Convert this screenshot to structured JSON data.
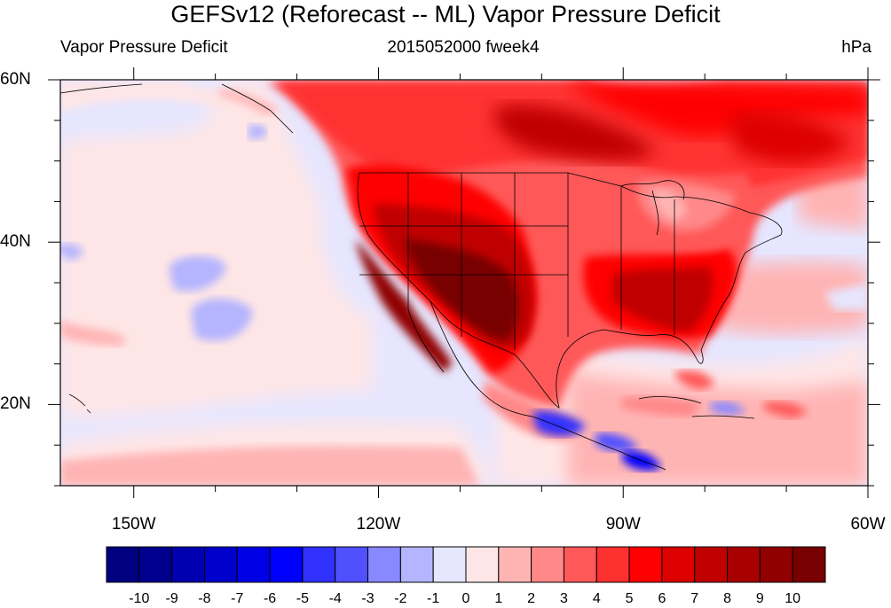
{
  "title": "GEFSv12 (Reforecast -- ML) Vapor Pressure Deficit",
  "subtitle_left": "Vapor Pressure Deficit",
  "subtitle_center": "2015052000 fweek4",
  "subtitle_right": "hPa",
  "lat_labels": [
    {
      "text": "60N",
      "lat": 60
    },
    {
      "text": "40N",
      "lat": 40
    },
    {
      "text": "20N",
      "lat": 20
    }
  ],
  "lon_labels": [
    {
      "text": "150W",
      "lon": -150
    },
    {
      "text": "120W",
      "lon": -120
    },
    {
      "text": "90W",
      "lon": -90
    },
    {
      "text": "60W",
      "lon": -60
    }
  ],
  "map_extent": {
    "lon_min": -159,
    "lon_max": -60,
    "lat_min": 10,
    "lat_max": 60
  },
  "colorbar": {
    "levels": [
      "-10",
      "-9",
      "-8",
      "-7",
      "-6",
      "-5",
      "-4",
      "-3",
      "-2",
      "-1",
      "0",
      "1",
      "2",
      "3",
      "4",
      "5",
      "6",
      "7",
      "8",
      "9",
      "10"
    ],
    "colors": [
      "#000080",
      "#00008f",
      "#0000b0",
      "#0000cc",
      "#0000e6",
      "#0000ff",
      "#3030ff",
      "#5050ff",
      "#8888ff",
      "#b4b4ff",
      "#e6e6ff",
      "#ffe6e6",
      "#ffb4b4",
      "#ff8888",
      "#ff5858",
      "#ff3030",
      "#ff0000",
      "#dd0000",
      "#c00000",
      "#a80000",
      "#900000",
      "#780000"
    ]
  }
}
